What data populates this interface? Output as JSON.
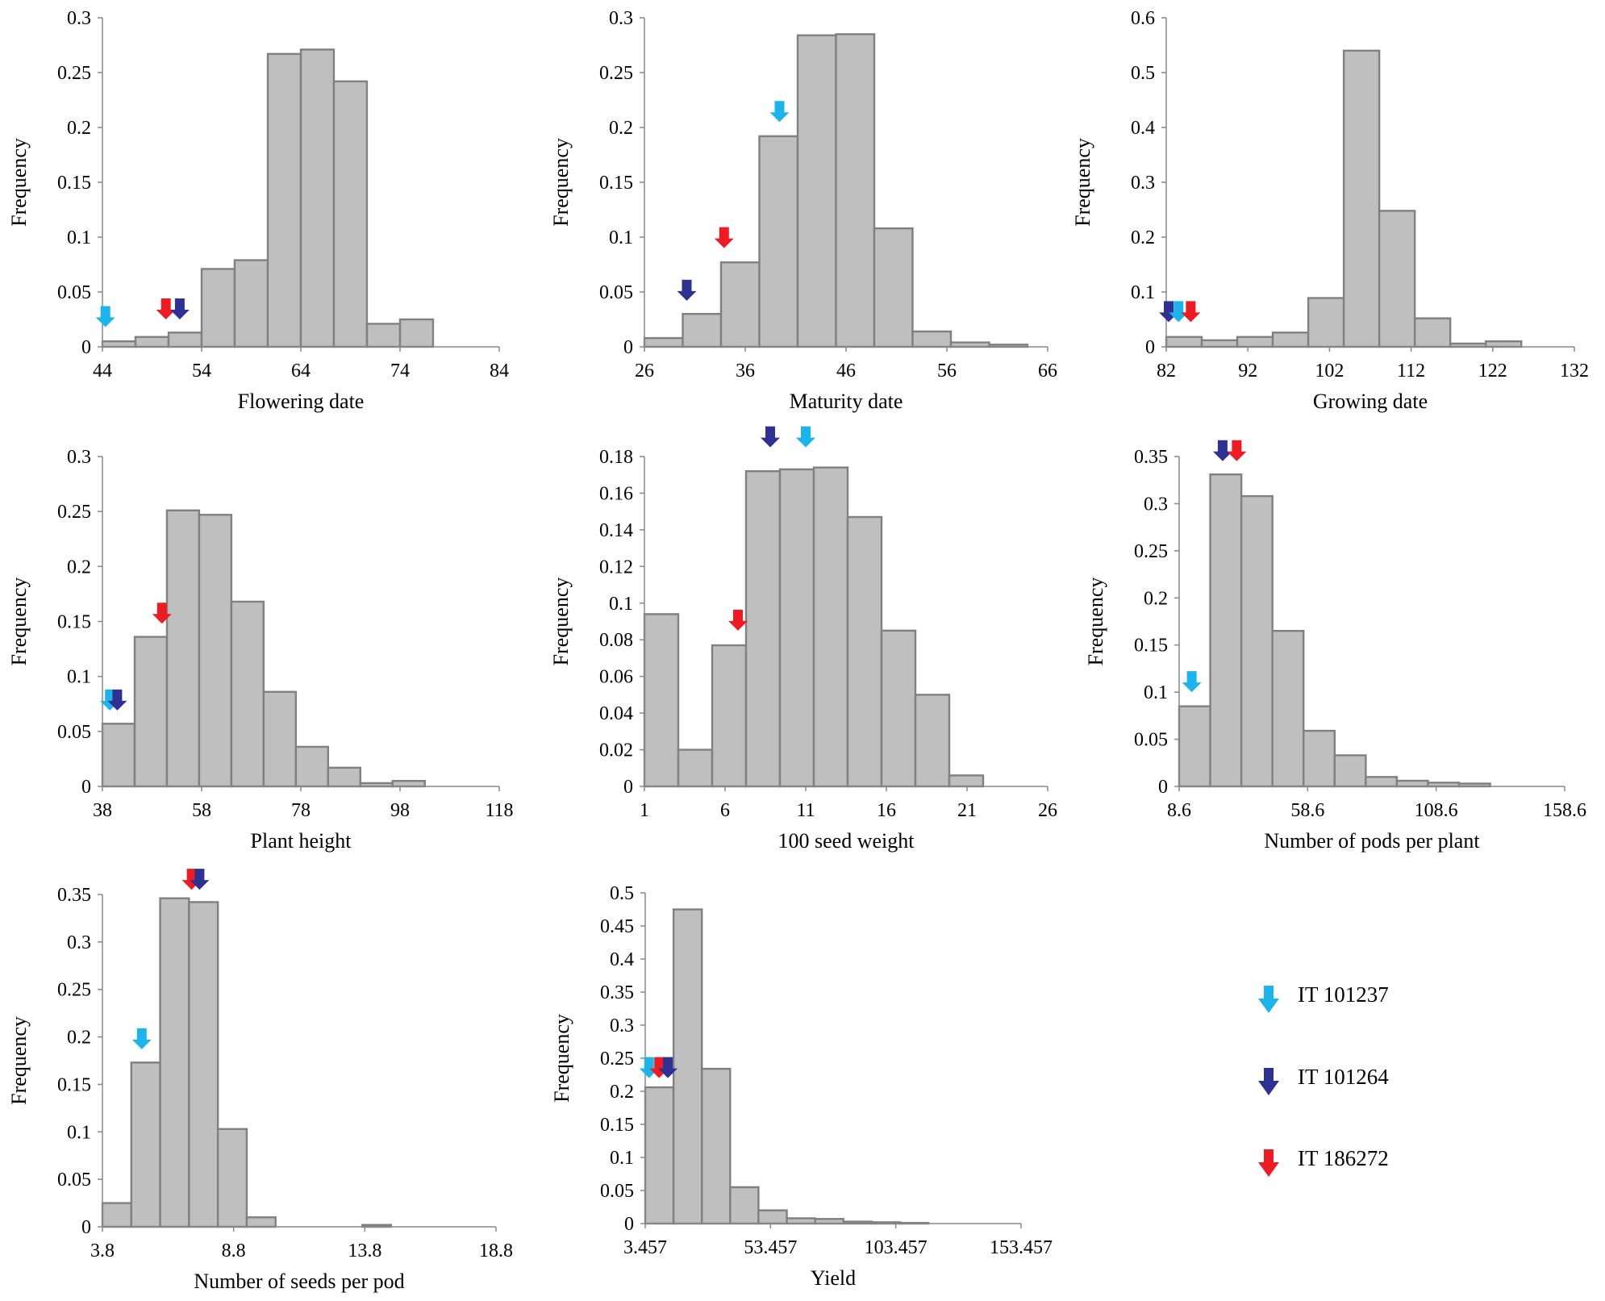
{
  "colors": {
    "bar_fill": "#bfbfbf",
    "bar_stroke": "#808080",
    "axis": "#888888",
    "IT 101237": "#1cb4ea",
    "IT 101264": "#2e3192",
    "IT 186272": "#ed1c24"
  },
  "legend": [
    {
      "label": "IT 101237",
      "color": "#1cb4ea"
    },
    {
      "label": "IT 101264",
      "color": "#2e3192"
    },
    {
      "label": "IT 186272",
      "color": "#ed1c24"
    }
  ],
  "chart_data": [
    {
      "type": "bar",
      "title": "",
      "xlabel": "Flowering date",
      "ylabel": "Frequency",
      "xlim": [
        44,
        84
      ],
      "xticks": [
        44,
        54,
        64,
        74,
        84
      ],
      "xtick_labels": [
        "44",
        "54",
        "64",
        "74",
        "84"
      ],
      "ylim": [
        0,
        0.3
      ],
      "yticks": [
        0,
        0.05,
        0.1,
        0.15,
        0.2,
        0.25,
        0.3
      ],
      "ytick_labels": [
        "0",
        "0.05",
        "0.1",
        "0.15",
        "0.2",
        "0.25",
        "0.3"
      ],
      "bin_width": 3.33,
      "bin_starts": [
        44,
        47.33,
        50.67,
        54,
        57.33,
        60.67,
        64,
        67.33,
        70.67,
        74
      ],
      "values": [
        0.005,
        0.009,
        0.013,
        0.071,
        0.079,
        0.267,
        0.271,
        0.242,
        0.021,
        0.025
      ],
      "markers": [
        {
          "accession": "IT 101237",
          "x": 44.3,
          "y": 0.018
        },
        {
          "accession": "IT 186272",
          "x": 50.4,
          "y": 0.025
        },
        {
          "accession": "IT 101264",
          "x": 51.8,
          "y": 0.025
        }
      ]
    },
    {
      "type": "bar",
      "title": "",
      "xlabel": "Maturity date",
      "ylabel": "Frequency",
      "xlim": [
        26,
        66
      ],
      "xticks": [
        26,
        36,
        46,
        56,
        66
      ],
      "xtick_labels": [
        "26",
        "36",
        "46",
        "56",
        "66"
      ],
      "ylim": [
        0,
        0.3
      ],
      "yticks": [
        0,
        0.05,
        0.1,
        0.15,
        0.2,
        0.25,
        0.3
      ],
      "ytick_labels": [
        "0",
        "0.05",
        "0.1",
        "0.15",
        "0.2",
        "0.25",
        "0.3"
      ],
      "bin_width": 3.8,
      "bin_starts": [
        26,
        29.8,
        33.6,
        37.4,
        41.2,
        45,
        48.8,
        52.6,
        56.4,
        60.2
      ],
      "values": [
        0.008,
        0.03,
        0.077,
        0.192,
        0.284,
        0.285,
        0.108,
        0.014,
        0.004,
        0.002
      ],
      "markers": [
        {
          "accession": "IT 101264",
          "x": 30.2,
          "y": 0.042
        },
        {
          "accession": "IT 186272",
          "x": 33.9,
          "y": 0.09
        },
        {
          "accession": "IT 101237",
          "x": 39.4,
          "y": 0.205
        }
      ]
    },
    {
      "type": "bar",
      "title": "",
      "xlabel": "Growing date",
      "ylabel": "Frequency",
      "xlim": [
        82,
        132
      ],
      "xticks": [
        82,
        92,
        102,
        112,
        122,
        132
      ],
      "xtick_labels": [
        "82",
        "92",
        "102",
        "112",
        "122",
        "132"
      ],
      "ylim": [
        0,
        0.6
      ],
      "yticks": [
        0,
        0.1,
        0.2,
        0.3,
        0.4,
        0.5,
        0.6
      ],
      "ytick_labels": [
        "0",
        "0.1",
        "0.2",
        "0.3",
        "0.4",
        "0.5",
        "0.6"
      ],
      "bin_width": 4.35,
      "bin_starts": [
        82,
        86.35,
        90.7,
        95.05,
        99.4,
        103.75,
        108.1,
        112.45,
        116.8,
        121.15
      ],
      "values": [
        0.018,
        0.012,
        0.018,
        0.026,
        0.089,
        0.54,
        0.248,
        0.052,
        0.006,
        0.01
      ],
      "markers": [
        {
          "accession": "IT 101264",
          "x": 82.3,
          "y": 0.045
        },
        {
          "accession": "IT 101237",
          "x": 83.5,
          "y": 0.045
        },
        {
          "accession": "IT 186272",
          "x": 85.0,
          "y": 0.045
        }
      ]
    },
    {
      "type": "bar",
      "title": "",
      "xlabel": "Plant height",
      "ylabel": "Frequency",
      "xlim": [
        38,
        118
      ],
      "xticks": [
        38,
        58,
        78,
        98,
        118
      ],
      "xtick_labels": [
        "38",
        "58",
        "78",
        "98",
        "118"
      ],
      "ylim": [
        0,
        0.3
      ],
      "yticks": [
        0,
        0.05,
        0.1,
        0.15,
        0.2,
        0.25,
        0.3
      ],
      "ytick_labels": [
        "0",
        "0.05",
        "0.1",
        "0.15",
        "0.2",
        "0.25",
        "0.3"
      ],
      "bin_width": 6.5,
      "bin_starts": [
        38,
        44.5,
        51,
        57.5,
        64,
        70.5,
        77,
        83.5,
        90,
        96.5
      ],
      "values": [
        0.057,
        0.136,
        0.251,
        0.247,
        0.168,
        0.086,
        0.036,
        0.017,
        0.003,
        0.005
      ],
      "markers": [
        {
          "accession": "IT 101237",
          "x": 39.5,
          "y": 0.069
        },
        {
          "accession": "IT 101264",
          "x": 41.0,
          "y": 0.069
        },
        {
          "accession": "IT 186272",
          "x": 50.0,
          "y": 0.148
        }
      ]
    },
    {
      "type": "bar",
      "title": "",
      "xlabel": "100 seed weight",
      "ylabel": "Frequency",
      "xlim": [
        1,
        26
      ],
      "xticks": [
        1,
        6,
        11,
        16,
        21,
        26
      ],
      "xtick_labels": [
        "1",
        "6",
        "11",
        "16",
        "21",
        "26"
      ],
      "ylim": [
        0,
        0.18
      ],
      "yticks": [
        0,
        0.02,
        0.04,
        0.06,
        0.08,
        0.1,
        0.12,
        0.14,
        0.16,
        0.18
      ],
      "ytick_labels": [
        "0",
        "0.02",
        "0.04",
        "0.06",
        "0.08",
        "0.1",
        "0.12",
        "0.14",
        "0.16",
        "0.18"
      ],
      "bin_width": 2.1,
      "bin_starts": [
        1,
        3.1,
        5.2,
        7.3,
        9.4,
        11.5,
        13.6,
        15.7,
        17.8,
        19.9
      ],
      "values": [
        0.094,
        0.02,
        0.077,
        0.172,
        0.173,
        0.174,
        0.147,
        0.085,
        0.05,
        0.006
      ],
      "markers": [
        {
          "accession": "IT 186272",
          "x": 6.8,
          "y": 0.085
        },
        {
          "accession": "IT 101264",
          "x": 8.8,
          "y": 0.185
        },
        {
          "accession": "IT 101237",
          "x": 11.0,
          "y": 0.185
        }
      ]
    },
    {
      "type": "bar",
      "title": "",
      "xlabel": "Number of pods per plant",
      "ylabel": "Frequency",
      "xlim": [
        8.6,
        158.6
      ],
      "xticks": [
        8.6,
        58.6,
        108.6,
        158.6
      ],
      "xtick_labels": [
        "8.6",
        "58.6",
        "108.6",
        "158.6"
      ],
      "ylim": [
        0,
        0.35
      ],
      "yticks": [
        0,
        0.05,
        0.1,
        0.15,
        0.2,
        0.25,
        0.3,
        0.35
      ],
      "ytick_labels": [
        "0",
        "0.05",
        "0.1",
        "0.15",
        "0.2",
        "0.25",
        "0.3",
        "0.35"
      ],
      "bin_width": 12.1,
      "bin_starts": [
        8.6,
        20.7,
        32.8,
        44.9,
        57.0,
        69.1,
        81.2,
        93.3,
        105.4,
        117.5,
        129.6
      ],
      "values": [
        0.085,
        0.331,
        0.308,
        0.165,
        0.059,
        0.033,
        0.01,
        0.006,
        0.004,
        0.003,
        0.0
      ],
      "markers": [
        {
          "accession": "IT 101237",
          "x": 13.5,
          "y": 0.1
        },
        {
          "accession": "IT 101264",
          "x": 25.5,
          "y": 0.345
        },
        {
          "accession": "IT 186272",
          "x": 31.0,
          "y": 0.345
        }
      ]
    },
    {
      "type": "bar",
      "title": "",
      "xlabel": "Number of seeds per pod",
      "ylabel": "Frequency",
      "xlim": [
        3.8,
        18.8
      ],
      "xticks": [
        3.8,
        8.8,
        13.8,
        18.8
      ],
      "xtick_labels": [
        "3.8",
        "8.8",
        "13.8",
        "18.8"
      ],
      "ylim": [
        0,
        0.35
      ],
      "yticks": [
        0,
        0.05,
        0.1,
        0.15,
        0.2,
        0.25,
        0.3,
        0.35
      ],
      "ytick_labels": [
        "0",
        "0.05",
        "0.1",
        "0.15",
        "0.2",
        "0.25",
        "0.3",
        "0.35"
      ],
      "bin_width": 1.1,
      "bin_starts": [
        3.8,
        4.9,
        6.0,
        7.1,
        8.2,
        9.3,
        10.4,
        11.5,
        12.6,
        13.7
      ],
      "values": [
        0.025,
        0.173,
        0.346,
        0.342,
        0.103,
        0.01,
        0.0,
        0.0,
        0.0,
        0.002
      ],
      "markers": [
        {
          "accession": "IT 101237",
          "x": 5.3,
          "y": 0.187
        },
        {
          "accession": "IT 186272",
          "x": 7.2,
          "y": 0.355
        },
        {
          "accession": "IT 101264",
          "x": 7.5,
          "y": 0.355
        }
      ]
    },
    {
      "type": "bar",
      "title": "",
      "xlabel": "Yield",
      "ylabel": "Frequency",
      "xlim": [
        3.457,
        153.457
      ],
      "xticks": [
        3.457,
        53.457,
        103.457,
        153.457
      ],
      "xtick_labels": [
        "3.457",
        "53.457",
        "103.457",
        "153.457"
      ],
      "ylim": [
        0,
        0.5
      ],
      "yticks": [
        0,
        0.05,
        0.1,
        0.15,
        0.2,
        0.25,
        0.3,
        0.35,
        0.4,
        0.45,
        0.5
      ],
      "ytick_labels": [
        "0",
        "0.05",
        "0.1",
        "0.15",
        "0.2",
        "0.25",
        "0.3",
        "0.35",
        "0.4",
        "0.45",
        "0.5"
      ],
      "bin_width": 11.3,
      "bin_starts": [
        3.457,
        14.757,
        26.057,
        37.357,
        48.657,
        59.957,
        71.257,
        82.557,
        93.857,
        105.157
      ],
      "values": [
        0.206,
        0.475,
        0.234,
        0.055,
        0.02,
        0.008,
        0.007,
        0.003,
        0.002,
        0.001
      ],
      "markers": [
        {
          "accession": "IT 101237",
          "x": 5.0,
          "y": 0.22
        },
        {
          "accession": "IT 186272",
          "x": 9.0,
          "y": 0.22
        },
        {
          "accession": "IT 101264",
          "x": 12.5,
          "y": 0.22
        }
      ]
    }
  ]
}
